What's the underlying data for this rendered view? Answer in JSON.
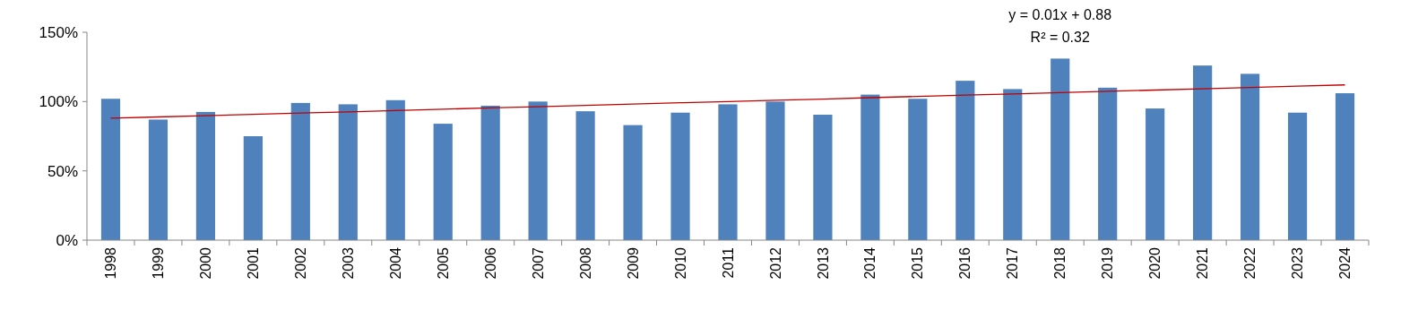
{
  "chart_data": {
    "type": "bar",
    "categories": [
      "1998",
      "1999",
      "2000",
      "2001",
      "2002",
      "2003",
      "2004",
      "2005",
      "2006",
      "2007",
      "2008",
      "2009",
      "2010",
      "2011",
      "2012",
      "2013",
      "2014",
      "2015",
      "2016",
      "2017",
      "2018",
      "2019",
      "2020",
      "2021",
      "2022",
      "2023",
      "2024"
    ],
    "series": [
      {
        "color": "#4f81bd",
        "values": [
          102,
          87,
          92.5,
          75,
          99,
          98,
          101,
          84,
          97,
          100,
          93,
          83,
          92,
          98,
          100,
          90.5,
          105,
          102,
          115,
          109,
          131,
          110,
          95,
          126,
          120,
          92,
          106
        ]
      },
      {
        "type": "line",
        "color": "#c00000",
        "values": [
          88,
          88.9,
          89.8,
          90.8,
          91.7,
          92.6,
          93.5,
          94.5,
          95.4,
          96.3,
          97.2,
          98.2,
          99.1,
          100,
          100.9,
          101.8,
          102.8,
          103.7,
          104.6,
          105.5,
          106.5,
          107.4,
          108.3,
          109.2,
          110.2,
          111.1,
          112
        ]
      }
    ],
    "ylim": [
      0,
      150
    ],
    "yticks": [
      {
        "value": 0,
        "label": "0%"
      },
      {
        "value": 50,
        "label": "50%"
      },
      {
        "value": 100,
        "label": "100%"
      },
      {
        "value": 150,
        "label": "150%"
      }
    ],
    "annotations": [
      "y = 0.01x + 0.88",
      "R² = 0.32"
    ],
    "grid": false
  }
}
